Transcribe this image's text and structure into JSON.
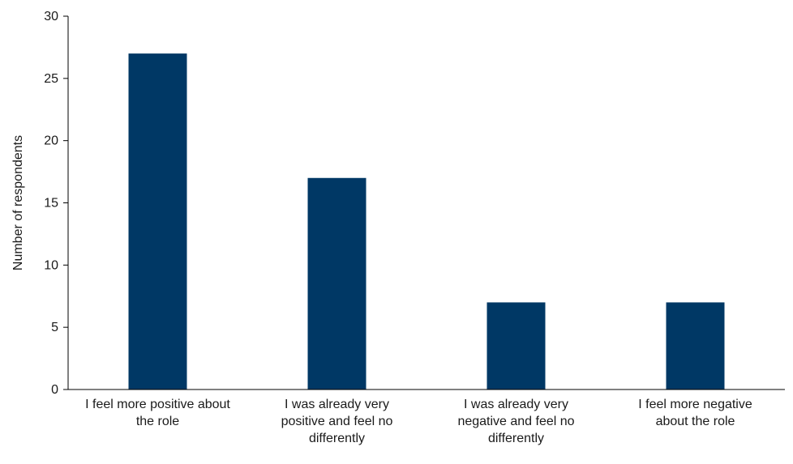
{
  "colors": {
    "bar": "#003865",
    "axis": "#000000",
    "text": "#1a1a1a"
  },
  "chart_data": {
    "type": "bar",
    "title": "",
    "xlabel": "",
    "ylabel": "Number of respondents",
    "categories": [
      [
        "I feel more positive about",
        "the role"
      ],
      [
        "I was already very",
        "positive and feel no",
        "differently"
      ],
      [
        "I was already very",
        "negative and feel no",
        "differently"
      ],
      [
        "I feel more negative",
        "about the role"
      ]
    ],
    "values": [
      27,
      17,
      7,
      7
    ],
    "ylim": [
      0,
      30
    ],
    "yticks": [
      0,
      5,
      10,
      15,
      20,
      25,
      30
    ],
    "grid": false,
    "legend": "none"
  }
}
